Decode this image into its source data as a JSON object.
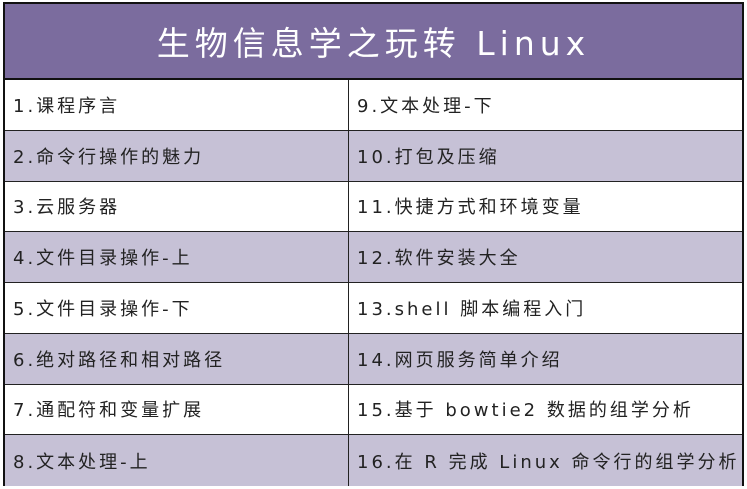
{
  "title": "生物信息学之玩转 Linux",
  "colors": {
    "header": "#7b6c9e",
    "alt_row": "#c6c1d6"
  },
  "left": [
    "1.课程序言",
    "2.命令行操作的魅力",
    "3.云服务器",
    "4.文件目录操作-上",
    "5.文件目录操作-下",
    "6.绝对路径和相对路径",
    "7.通配符和变量扩展",
    "8.文本处理-上"
  ],
  "right": [
    "9.文本处理-下",
    "10.打包及压缩",
    "11.快捷方式和环境变量",
    "12.软件安装大全",
    "13.shell 脚本编程入门",
    "14.网页服务简单介绍",
    "15.基于 bowtie2 数据的组学分析",
    "16.在 R 完成 Linux 命令行的组学分析"
  ]
}
